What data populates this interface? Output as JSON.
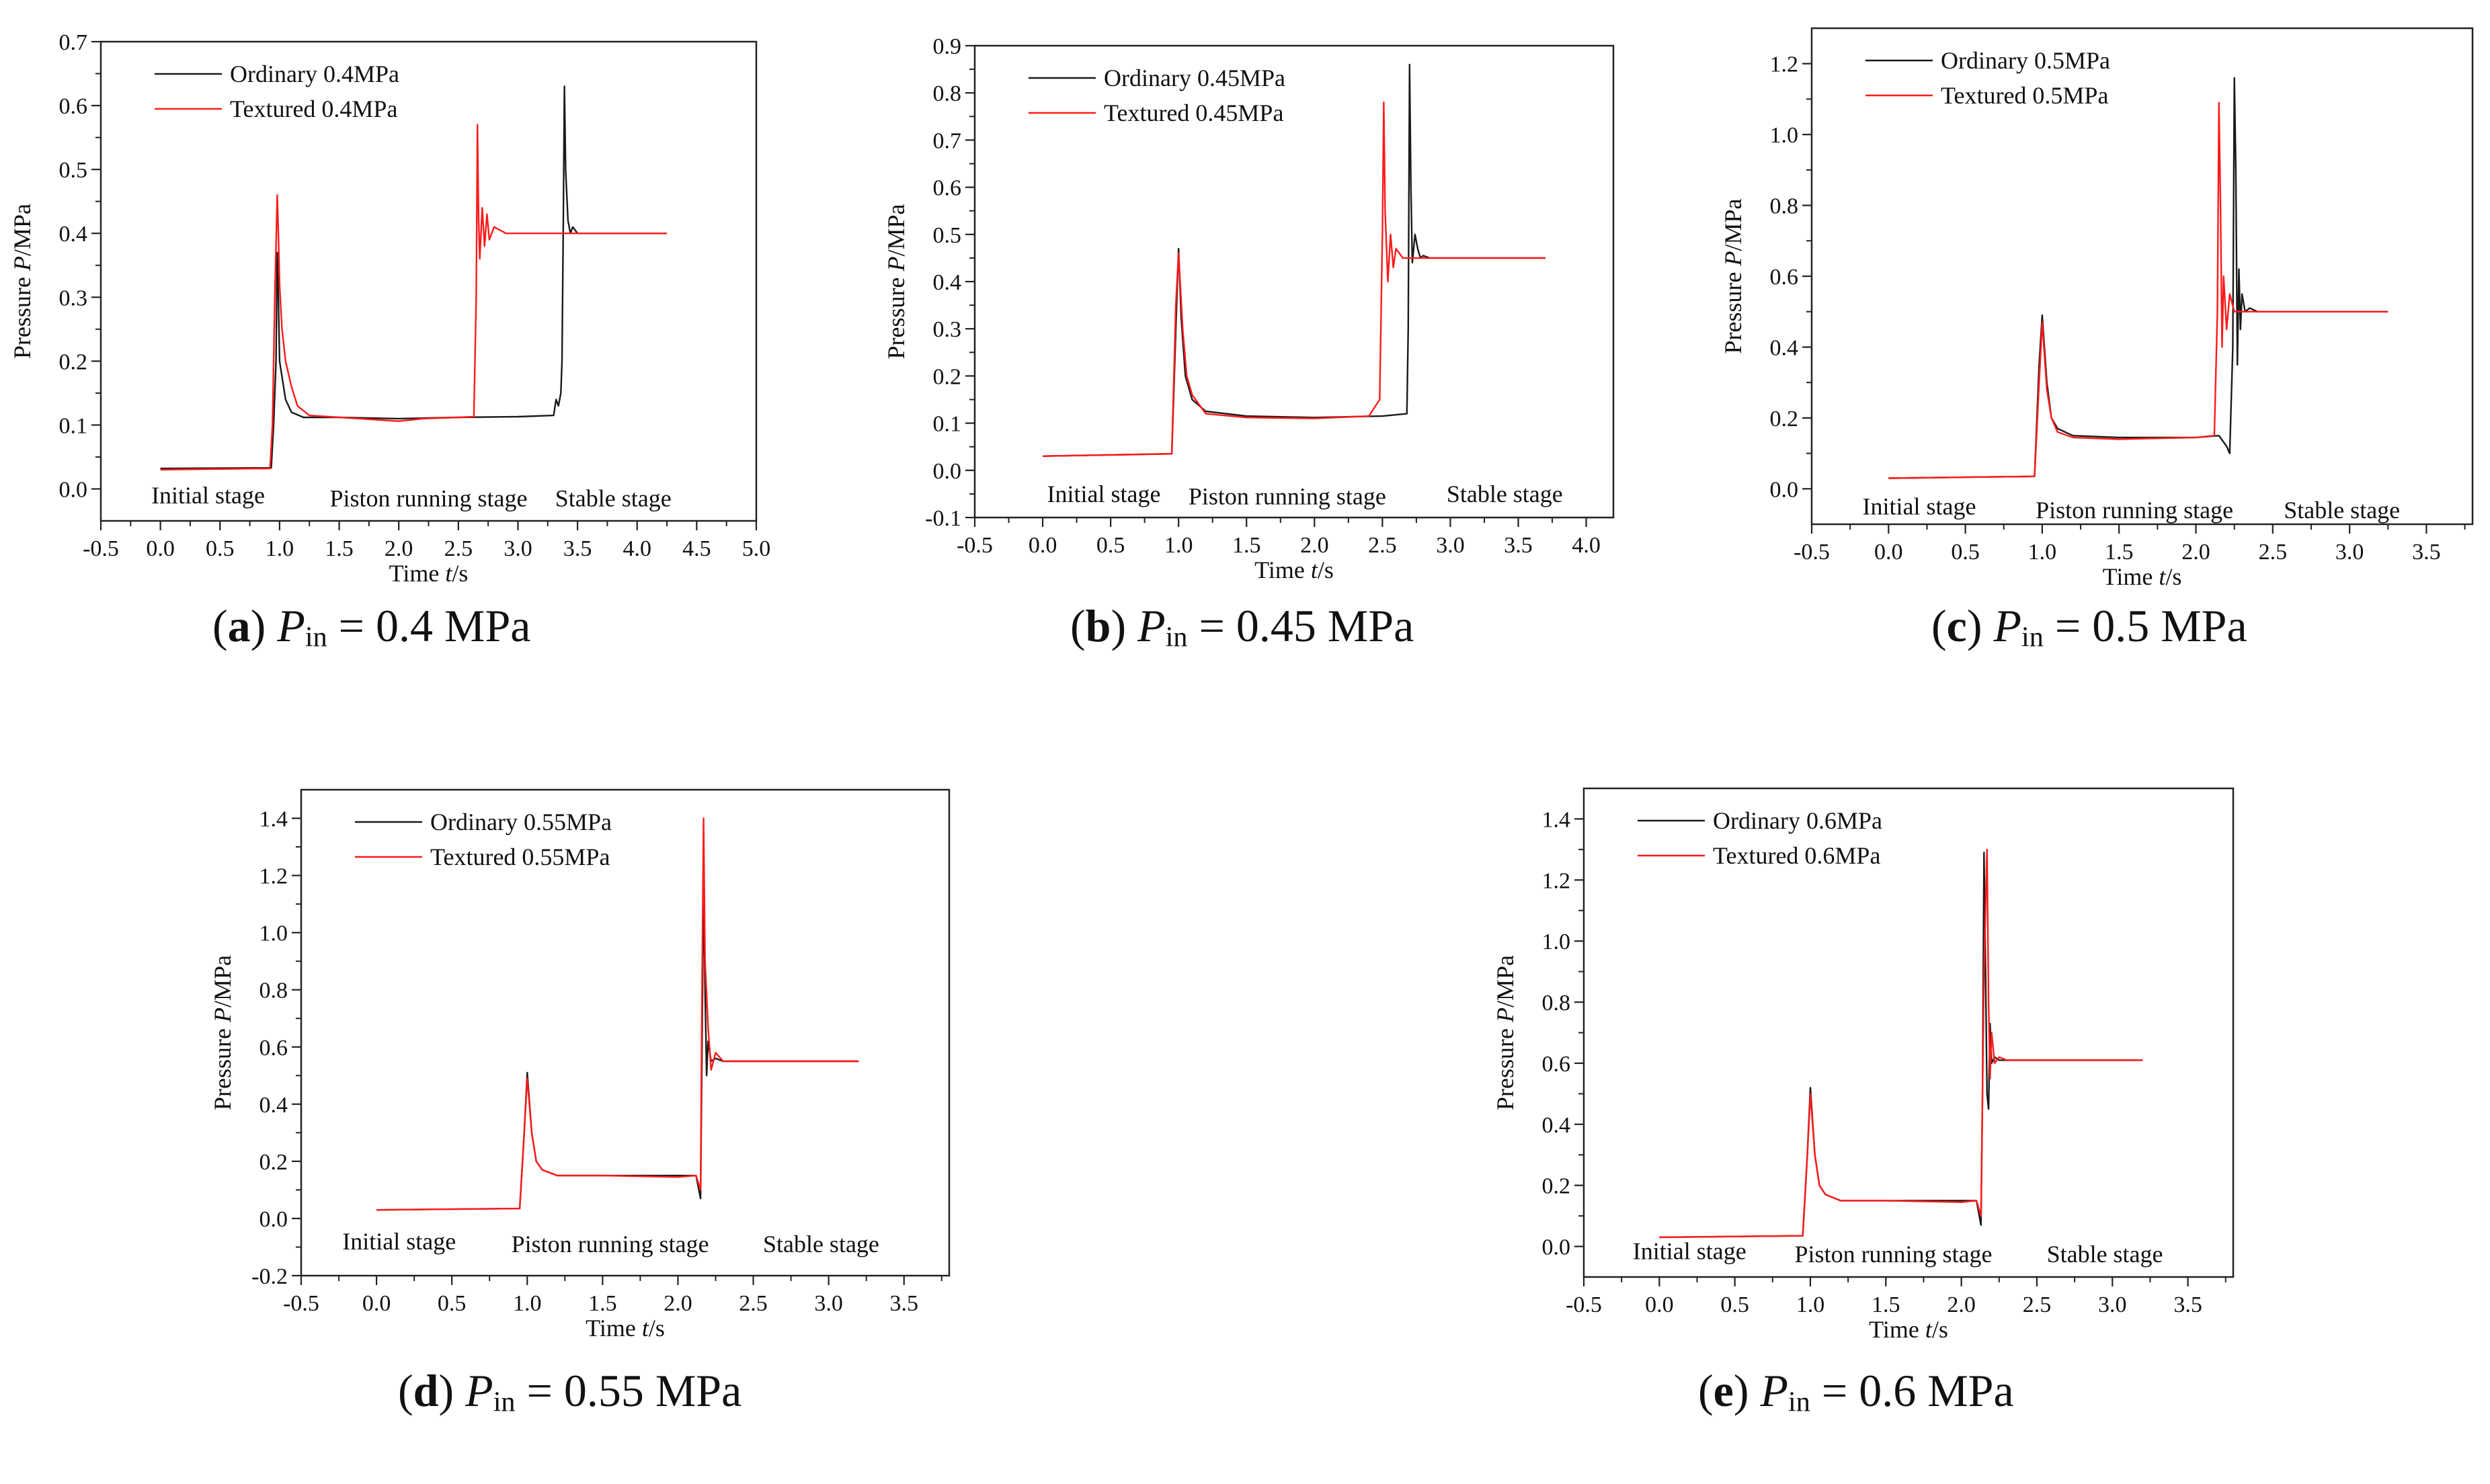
{
  "colors": {
    "ordinary": "#1a1a1a",
    "textured": "#ff1a1a"
  },
  "chart_data": [
    {
      "panel": "a",
      "type": "line",
      "caption": {
        "label": "a",
        "symbol": "P",
        "sub": "in",
        "text": "= 0.4 MPa"
      },
      "xlabel_prefix": "Time ",
      "xlabel_var": "t",
      "xlabel_suffix": "/s",
      "ylabel_prefix": "Pressure ",
      "ylabel_var": "P",
      "ylabel_suffix": "/MPa",
      "xlim": [
        -0.5,
        5.0
      ],
      "ylim": [
        -0.05,
        0.7
      ],
      "xticks": [
        -0.5,
        0.0,
        0.5,
        1.0,
        1.5,
        2.0,
        2.5,
        3.0,
        3.5,
        4.0,
        4.5,
        5.0
      ],
      "yticks": [
        0.0,
        0.1,
        0.2,
        0.3,
        0.4,
        0.5,
        0.6,
        0.7
      ],
      "xtick_labels": [
        "-0.5",
        "0.0",
        "0.5",
        "1.0",
        "1.5",
        "2.0",
        "2.5",
        "3.0",
        "3.5",
        "4.0",
        "4.5",
        "5.0"
      ],
      "ytick_labels": [
        "0.0",
        "0.1",
        "0.2",
        "0.3",
        "0.4",
        "0.5",
        "0.6",
        "0.7"
      ],
      "stage_labels": [
        {
          "text": "Initial stage",
          "x": 0.4,
          "y": -0.01
        },
        {
          "text": "Piston running stage",
          "x": 2.25,
          "y": -0.015
        },
        {
          "text": "Stable stage",
          "x": 3.8,
          "y": -0.015
        }
      ],
      "legend_position": "top-left",
      "series": [
        {
          "name": "Ordinary 0.4MPa",
          "color_key": "ordinary",
          "x": [
            0.0,
            0.93,
            0.95,
            0.97,
            0.98,
            0.99,
            1.0,
            1.05,
            1.1,
            1.2,
            1.5,
            2.0,
            2.5,
            3.0,
            3.3,
            3.32,
            3.34,
            3.36,
            3.37,
            3.38,
            3.39,
            3.4,
            3.42,
            3.44,
            3.46,
            3.5,
            3.7,
            4.0,
            4.25
          ],
          "y": [
            0.032,
            0.033,
            0.1,
            0.2,
            0.37,
            0.3,
            0.2,
            0.14,
            0.12,
            0.112,
            0.112,
            0.11,
            0.112,
            0.113,
            0.115,
            0.14,
            0.13,
            0.15,
            0.2,
            0.4,
            0.63,
            0.5,
            0.42,
            0.4,
            0.41,
            0.4,
            0.4,
            0.4,
            0.4
          ]
        },
        {
          "name": "Textured 0.4MPa",
          "color_key": "textured",
          "x": [
            0.0,
            0.92,
            0.94,
            0.96,
            0.98,
            0.99,
            1.0,
            1.02,
            1.05,
            1.1,
            1.15,
            1.25,
            1.5,
            2.0,
            2.2,
            2.5,
            2.63,
            2.65,
            2.66,
            2.67,
            2.68,
            2.7,
            2.72,
            2.74,
            2.76,
            2.8,
            2.9,
            3.0,
            3.5,
            4.0,
            4.25
          ],
          "y": [
            0.03,
            0.032,
            0.1,
            0.3,
            0.46,
            0.4,
            0.32,
            0.25,
            0.2,
            0.16,
            0.13,
            0.115,
            0.112,
            0.106,
            0.11,
            0.112,
            0.113,
            0.3,
            0.57,
            0.42,
            0.36,
            0.44,
            0.38,
            0.43,
            0.39,
            0.41,
            0.4,
            0.4,
            0.4,
            0.4,
            0.4
          ]
        }
      ]
    },
    {
      "panel": "b",
      "type": "line",
      "caption": {
        "label": "b",
        "symbol": "P",
        "sub": "in",
        "text": "= 0.45 MPa"
      },
      "xlabel_prefix": "Time ",
      "xlabel_var": "t",
      "xlabel_suffix": "/s",
      "ylabel_prefix": "Pressure ",
      "ylabel_var": "P",
      "ylabel_suffix": "/MPa",
      "xlim": [
        -0.5,
        4.2
      ],
      "ylim": [
        -0.1,
        0.9
      ],
      "xticks": [
        -0.5,
        0.0,
        0.5,
        1.0,
        1.5,
        2.0,
        2.5,
        3.0,
        3.5,
        4.0
      ],
      "yticks": [
        -0.1,
        0.0,
        0.1,
        0.2,
        0.3,
        0.4,
        0.5,
        0.6,
        0.7,
        0.8,
        0.9
      ],
      "xtick_labels": [
        "-0.5",
        "0.0",
        "0.5",
        "1.0",
        "1.5",
        "2.0",
        "2.5",
        "3.0",
        "3.5",
        "4.0"
      ],
      "ytick_labels": [
        "-0.1",
        "0.0",
        "0.1",
        "0.2",
        "0.3",
        "0.4",
        "0.5",
        "0.6",
        "0.7",
        "0.8",
        "0.9"
      ],
      "stage_labels": [
        {
          "text": "Initial stage",
          "x": 0.45,
          "y": -0.05
        },
        {
          "text": "Piston running stage",
          "x": 1.8,
          "y": -0.055
        },
        {
          "text": "Stable stage",
          "x": 3.4,
          "y": -0.05
        }
      ],
      "legend_position": "top-left",
      "series": [
        {
          "name": "Ordinary 0.45MPa",
          "color_key": "ordinary",
          "x": [
            0.0,
            0.95,
            0.98,
            1.0,
            1.02,
            1.05,
            1.1,
            1.2,
            1.5,
            2.0,
            2.5,
            2.68,
            2.69,
            2.7,
            2.71,
            2.72,
            2.74,
            2.76,
            2.78,
            2.8,
            2.85,
            3.0,
            3.5,
            3.7
          ],
          "y": [
            0.03,
            0.035,
            0.3,
            0.47,
            0.32,
            0.2,
            0.15,
            0.125,
            0.115,
            0.112,
            0.115,
            0.12,
            0.3,
            0.86,
            0.6,
            0.44,
            0.5,
            0.47,
            0.45,
            0.455,
            0.45,
            0.45,
            0.45,
            0.45
          ]
        },
        {
          "name": "Textured 0.45MPa",
          "color_key": "textured",
          "x": [
            0.0,
            0.95,
            0.98,
            1.0,
            1.03,
            1.06,
            1.1,
            1.2,
            1.5,
            2.0,
            2.4,
            2.48,
            2.5,
            2.51,
            2.52,
            2.54,
            2.56,
            2.58,
            2.6,
            2.65,
            2.8,
            3.0,
            3.5,
            3.7
          ],
          "y": [
            0.03,
            0.035,
            0.35,
            0.46,
            0.3,
            0.2,
            0.16,
            0.12,
            0.112,
            0.11,
            0.115,
            0.15,
            0.5,
            0.78,
            0.55,
            0.4,
            0.5,
            0.43,
            0.47,
            0.45,
            0.45,
            0.45,
            0.45,
            0.45
          ]
        }
      ]
    },
    {
      "panel": "c",
      "type": "line",
      "caption": {
        "label": "c",
        "symbol": "P",
        "sub": "in",
        "text": "= 0.5 MPa"
      },
      "xlabel_prefix": "Time ",
      "xlabel_var": "t",
      "xlabel_suffix": "/s",
      "ylabel_prefix": "Pressure ",
      "ylabel_var": "P",
      "ylabel_suffix": "/MPa",
      "xlim": [
        -0.5,
        3.8
      ],
      "ylim": [
        -0.1,
        1.3
      ],
      "xticks": [
        -0.5,
        0.0,
        0.5,
        1.0,
        1.5,
        2.0,
        2.5,
        3.0,
        3.5
      ],
      "yticks": [
        0.0,
        0.2,
        0.4,
        0.6,
        0.8,
        1.0,
        1.2
      ],
      "xtick_labels": [
        "-0.5",
        "0.0",
        "0.5",
        "1.0",
        "1.5",
        "2.0",
        "2.5",
        "3.0",
        "3.5"
      ],
      "ytick_labels": [
        "0.0",
        "0.2",
        "0.4",
        "0.6",
        "0.8",
        "1.0",
        "1.2"
      ],
      "stage_labels": [
        {
          "text": "Initial stage",
          "x": 0.2,
          "y": -0.05
        },
        {
          "text": "Piston running stage",
          "x": 1.6,
          "y": -0.06
        },
        {
          "text": "Stable stage",
          "x": 2.95,
          "y": -0.06
        }
      ],
      "legend_position": "top-left",
      "series": [
        {
          "name": "Ordinary 0.5MPa",
          "color_key": "ordinary",
          "x": [
            0.0,
            0.95,
            0.98,
            1.0,
            1.03,
            1.06,
            1.1,
            1.2,
            1.5,
            2.0,
            2.15,
            2.2,
            2.22,
            2.24,
            2.25,
            2.26,
            2.27,
            2.28,
            2.29,
            2.3,
            2.32,
            2.35,
            2.4,
            2.6,
            3.0,
            3.25
          ],
          "y": [
            0.03,
            0.035,
            0.35,
            0.49,
            0.3,
            0.2,
            0.17,
            0.15,
            0.145,
            0.145,
            0.15,
            0.12,
            0.1,
            0.4,
            1.16,
            0.9,
            0.35,
            0.62,
            0.45,
            0.55,
            0.5,
            0.51,
            0.5,
            0.5,
            0.5,
            0.5
          ]
        },
        {
          "name": "Textured 0.5MPa",
          "color_key": "textured",
          "x": [
            0.0,
            0.95,
            0.98,
            1.0,
            1.03,
            1.06,
            1.1,
            1.2,
            1.5,
            2.0,
            2.12,
            2.14,
            2.15,
            2.16,
            2.17,
            2.18,
            2.2,
            2.22,
            2.25,
            2.3,
            2.5,
            3.0,
            3.25
          ],
          "y": [
            0.03,
            0.035,
            0.3,
            0.47,
            0.28,
            0.2,
            0.16,
            0.145,
            0.14,
            0.145,
            0.15,
            0.5,
            1.09,
            0.8,
            0.4,
            0.6,
            0.45,
            0.55,
            0.5,
            0.5,
            0.5,
            0.5,
            0.5
          ]
        }
      ]
    },
    {
      "panel": "d",
      "type": "line",
      "caption": {
        "label": "d",
        "symbol": "P",
        "sub": "in",
        "text": "= 0.55 MPa"
      },
      "xlabel_prefix": "Time ",
      "xlabel_var": "t",
      "xlabel_suffix": "/s",
      "ylabel_prefix": "Pressure ",
      "ylabel_var": "P",
      "ylabel_suffix": "/MPa",
      "xlim": [
        -0.5,
        3.8
      ],
      "ylim": [
        -0.2,
        1.5
      ],
      "xticks": [
        -0.5,
        0.0,
        0.5,
        1.0,
        1.5,
        2.0,
        2.5,
        3.0,
        3.5
      ],
      "yticks": [
        -0.2,
        0.0,
        0.2,
        0.4,
        0.6,
        0.8,
        1.0,
        1.2,
        1.4
      ],
      "xtick_labels": [
        "-0.5",
        "0.0",
        "0.5",
        "1.0",
        "1.5",
        "2.0",
        "2.5",
        "3.0",
        "3.5"
      ],
      "ytick_labels": [
        "-0.2",
        "0.0",
        "0.2",
        "0.4",
        "0.6",
        "0.8",
        "1.0",
        "1.2",
        "1.4"
      ],
      "stage_labels": [
        {
          "text": "Initial stage",
          "x": 0.15,
          "y": -0.08
        },
        {
          "text": "Piston running stage",
          "x": 1.55,
          "y": -0.09
        },
        {
          "text": "Stable stage",
          "x": 2.95,
          "y": -0.09
        }
      ],
      "legend_position": "top-left",
      "series": [
        {
          "name": "Ordinary 0.55MPa",
          "color_key": "ordinary",
          "x": [
            0.0,
            0.95,
            0.98,
            1.0,
            1.03,
            1.06,
            1.1,
            1.2,
            1.5,
            2.0,
            2.12,
            2.15,
            2.16,
            2.17,
            2.18,
            2.19,
            2.2,
            2.22,
            2.25,
            2.3,
            2.5,
            3.0,
            3.2
          ],
          "y": [
            0.03,
            0.035,
            0.3,
            0.51,
            0.3,
            0.2,
            0.17,
            0.15,
            0.15,
            0.15,
            0.15,
            0.07,
            0.6,
            1.2,
            0.8,
            0.5,
            0.62,
            0.55,
            0.56,
            0.55,
            0.55,
            0.55,
            0.55
          ]
        },
        {
          "name": "Textured 0.55MPa",
          "color_key": "textured",
          "x": [
            0.0,
            0.95,
            0.98,
            1.0,
            1.03,
            1.06,
            1.1,
            1.2,
            1.5,
            2.0,
            2.12,
            2.15,
            2.16,
            2.17,
            2.18,
            2.2,
            2.22,
            2.25,
            2.3,
            2.5,
            3.0,
            3.2
          ],
          "y": [
            0.03,
            0.035,
            0.3,
            0.49,
            0.3,
            0.2,
            0.17,
            0.15,
            0.15,
            0.145,
            0.15,
            0.1,
            0.8,
            1.4,
            0.9,
            0.67,
            0.52,
            0.58,
            0.55,
            0.55,
            0.55,
            0.55
          ]
        }
      ]
    },
    {
      "panel": "e",
      "type": "line",
      "caption": {
        "label": "e",
        "symbol": "P",
        "sub": "in",
        "text": "= 0.6 MPa"
      },
      "xlabel_prefix": "Time ",
      "xlabel_var": "t",
      "xlabel_suffix": "/s",
      "ylabel_prefix": "Pressure ",
      "ylabel_var": "P",
      "ylabel_suffix": "/MPa",
      "xlim": [
        -0.5,
        3.8
      ],
      "ylim": [
        -0.1,
        1.5
      ],
      "xticks": [
        -0.5,
        0.0,
        0.5,
        1.0,
        1.5,
        2.0,
        2.5,
        3.0,
        3.5
      ],
      "yticks": [
        0.0,
        0.2,
        0.4,
        0.6,
        0.8,
        1.0,
        1.2,
        1.4
      ],
      "xtick_labels": [
        "-0.5",
        "0.0",
        "0.5",
        "1.0",
        "1.5",
        "2.0",
        "2.5",
        "3.0",
        "3.5"
      ],
      "ytick_labels": [
        "0.0",
        "0.2",
        "0.4",
        "0.6",
        "0.8",
        "1.0",
        "1.2",
        "1.4"
      ],
      "stage_labels": [
        {
          "text": "Initial stage",
          "x": 0.2,
          "y": -0.015
        },
        {
          "text": "Piston running stage",
          "x": 1.55,
          "y": -0.025
        },
        {
          "text": "Stable stage",
          "x": 2.95,
          "y": -0.025
        }
      ],
      "legend_position": "top-left",
      "series": [
        {
          "name": "Ordinary 0.6MPa",
          "color_key": "ordinary",
          "x": [
            0.0,
            0.95,
            0.98,
            1.0,
            1.03,
            1.06,
            1.1,
            1.2,
            1.5,
            2.0,
            2.1,
            2.13,
            2.14,
            2.15,
            2.16,
            2.17,
            2.18,
            2.19,
            2.2,
            2.22,
            2.25,
            2.3,
            2.5,
            3.0,
            3.2
          ],
          "y": [
            0.03,
            0.035,
            0.3,
            0.52,
            0.3,
            0.2,
            0.17,
            0.15,
            0.15,
            0.15,
            0.15,
            0.07,
            0.5,
            1.29,
            0.9,
            0.5,
            0.45,
            0.73,
            0.6,
            0.62,
            0.61,
            0.61,
            0.61,
            0.61,
            0.61
          ]
        },
        {
          "name": "Textured 0.6MPa",
          "color_key": "textured",
          "x": [
            0.0,
            0.95,
            0.98,
            1.0,
            1.03,
            1.06,
            1.1,
            1.2,
            1.5,
            2.0,
            2.1,
            2.13,
            2.15,
            2.17,
            2.18,
            2.19,
            2.2,
            2.22,
            2.25,
            2.3,
            2.5,
            3.0,
            3.2
          ],
          "y": [
            0.03,
            0.035,
            0.3,
            0.5,
            0.3,
            0.2,
            0.17,
            0.15,
            0.15,
            0.145,
            0.15,
            0.1,
            0.9,
            1.3,
            0.8,
            0.55,
            0.7,
            0.6,
            0.62,
            0.61,
            0.61,
            0.61,
            0.61
          ]
        }
      ]
    }
  ]
}
